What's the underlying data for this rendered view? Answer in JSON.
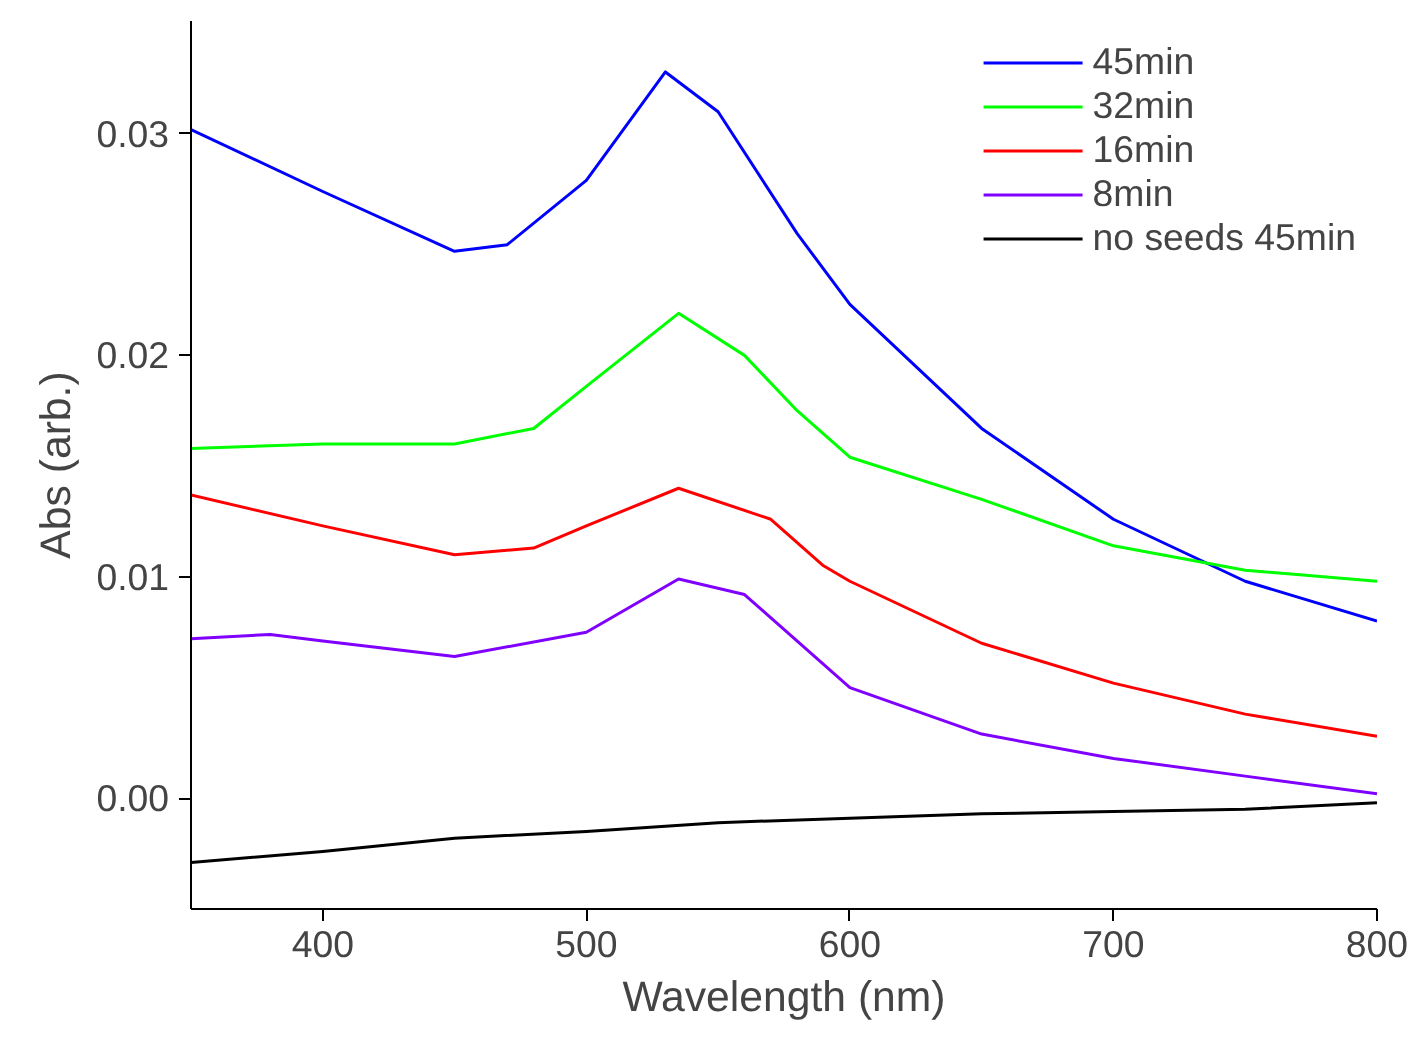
{
  "chart_data": {
    "type": "line",
    "xlabel": "Wavelength (nm)",
    "ylabel": "Abs (arb.)",
    "xlim": [
      350,
      800
    ],
    "xticks": [
      400,
      500,
      600,
      700,
      800
    ],
    "ylim": [
      -0.005,
      0.0351
    ],
    "yticks": [
      {
        "value": 0,
        "label": "0.00"
      },
      {
        "value": 0.01,
        "label": "0.01"
      },
      {
        "value": 0.02,
        "label": "0.02"
      },
      {
        "value": 0.03,
        "label": "0.03"
      }
    ],
    "grid": false,
    "legend": "top right",
    "marker": "none",
    "line_style": "solid",
    "series": [
      {
        "name": "45min",
        "color": "#0000ff",
        "x": [
          350,
          400,
          450,
          470,
          500,
          530,
          550,
          580,
          600,
          650,
          700,
          750,
          800
        ],
        "values": [
          0.0302,
          0.0274,
          0.0247,
          0.025,
          0.0279,
          0.0328,
          0.031,
          0.0255,
          0.0223,
          0.0167,
          0.0126,
          0.0098,
          0.008
        ]
      },
      {
        "name": "32min",
        "color": "#00ff00",
        "x": [
          350,
          400,
          450,
          480,
          500,
          535,
          560,
          580,
          600,
          650,
          700,
          750,
          800
        ],
        "values": [
          0.0158,
          0.016,
          0.016,
          0.0167,
          0.0186,
          0.0219,
          0.02,
          0.0175,
          0.0154,
          0.0135,
          0.0114,
          0.0103,
          0.0098
        ]
      },
      {
        "name": "16min",
        "color": "#ff0000",
        "x": [
          350,
          400,
          450,
          480,
          500,
          535,
          570,
          590,
          600,
          650,
          700,
          750,
          800
        ],
        "values": [
          0.0137,
          0.0123,
          0.011,
          0.0113,
          0.0123,
          0.014,
          0.0126,
          0.0105,
          0.0098,
          0.007,
          0.0052,
          0.0038,
          0.0028
        ]
      },
      {
        "name": "8min",
        "color": "#8000ff",
        "x": [
          350,
          380,
          400,
          450,
          500,
          535,
          560,
          600,
          650,
          700,
          750,
          800
        ],
        "values": [
          0.0072,
          0.0074,
          0.0071,
          0.0064,
          0.0075,
          0.0099,
          0.0092,
          0.005,
          0.0029,
          0.0018,
          0.001,
          0.0002
        ]
      },
      {
        "name": "no seeds 45min",
        "color": "#000000",
        "x": [
          350,
          400,
          450,
          500,
          550,
          600,
          650,
          700,
          750,
          800
        ],
        "values": [
          -0.0029,
          -0.0024,
          -0.0018,
          -0.0015,
          -0.0011,
          -0.0009,
          -0.0007,
          -0.0006,
          -0.0005,
          -0.0002
        ]
      }
    ]
  }
}
